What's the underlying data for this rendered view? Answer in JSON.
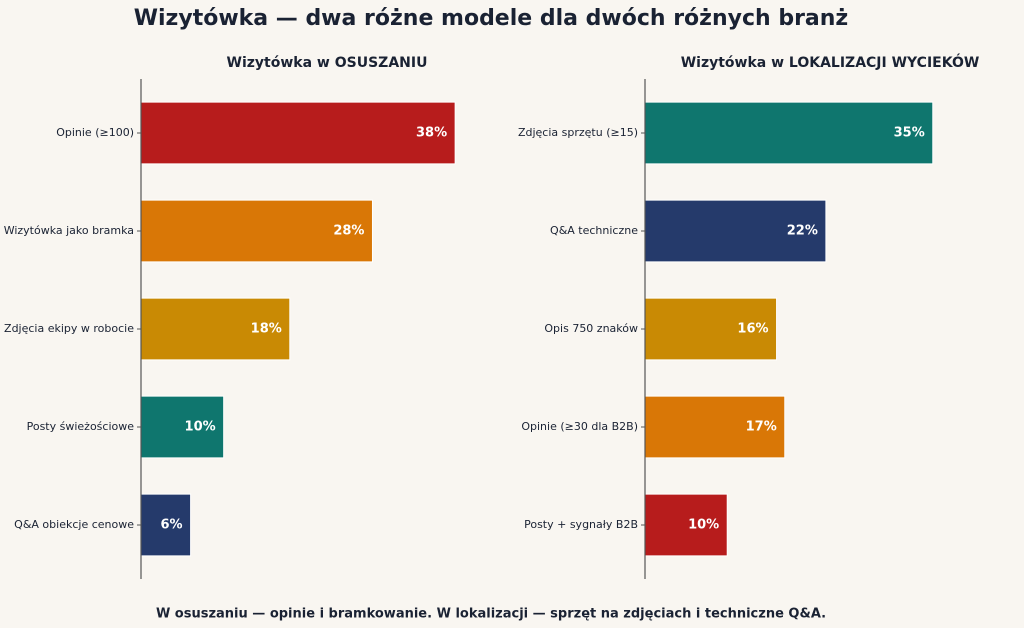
{
  "title": "Wizytówka — dwa różne modele dla dwóch różnych branż",
  "footnote": "W osuszaniu — opinie i bramkowanie. W lokalizacji — sprzęt na zdjęciach i techniczne Q&A.",
  "chart_data": [
    {
      "type": "barh",
      "title": "Wizytówka w OSUSZANIU",
      "categories": [
        "Opinie (≥100)",
        "Wizytówka jako bramka",
        "Zdjęcia ekipy w robocie",
        "Posty świeżościowe",
        "Q&A obiekcje cenowe"
      ],
      "values": [
        38,
        28,
        18,
        10,
        6
      ],
      "value_labels": [
        "38%",
        "28%",
        "18%",
        "10%",
        "6%"
      ],
      "colors": [
        "#b71c1c",
        "#d97706",
        "#c98a04",
        "#0f766e",
        "#253a6b"
      ],
      "xlim": [
        0,
        45
      ]
    },
    {
      "type": "barh",
      "title": "Wizytówka w LOKALIZACJI WYCIEKÓW",
      "categories": [
        "Zdjęcia sprzętu (≥15)",
        "Q&A techniczne",
        "Opis 750 znaków",
        "Opinie (≥30 dla B2B)",
        "Posty + sygnały B2B"
      ],
      "values": [
        35,
        22,
        16,
        17,
        10
      ],
      "value_labels": [
        "35%",
        "22%",
        "16%",
        "17%",
        "10%"
      ],
      "colors": [
        "#0f766e",
        "#253a6b",
        "#c98a04",
        "#d97706",
        "#b71c1c"
      ],
      "xlim": [
        0,
        45
      ]
    }
  ]
}
